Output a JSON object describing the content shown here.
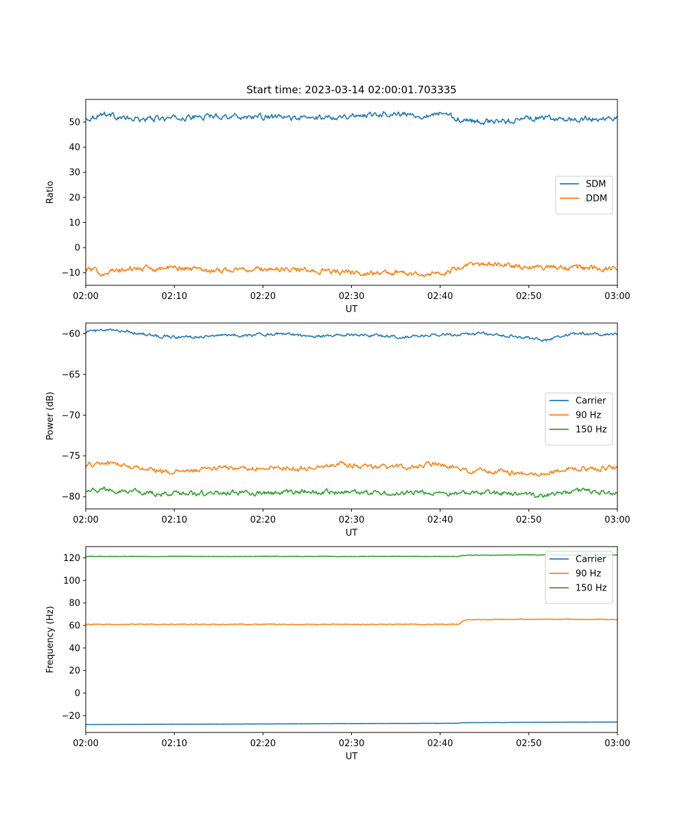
{
  "figure_title": "Start time: 2023-03-14 02:00:01.703335",
  "colors": {
    "blue": "#1f77b4",
    "orange": "#ff7f0e",
    "green": "#2ca02c"
  },
  "chart_data": [
    {
      "type": "line",
      "title": "Start time: 2023-03-14 02:00:01.703335",
      "xlabel": "UT",
      "ylabel": "Ratio",
      "x_range": [
        "02:00",
        "03:00"
      ],
      "ylim": [
        -15,
        59
      ],
      "xticks": [
        "02:00",
        "02:10",
        "02:20",
        "02:30",
        "02:40",
        "02:50",
        "03:00"
      ],
      "yticks": [
        -10,
        0,
        10,
        20,
        30,
        40,
        50
      ],
      "grid": false,
      "legend_position": "center-right",
      "series": [
        {
          "name": "SDM",
          "color": "#1f77b4",
          "x": [
            "02:00",
            "02:02",
            "02:05",
            "02:10",
            "02:15",
            "02:20",
            "02:25",
            "02:30",
            "02:34",
            "02:38",
            "02:40",
            "02:43",
            "02:46",
            "02:50",
            "02:55",
            "03:00"
          ],
          "y": [
            51,
            53.5,
            51,
            51.5,
            52.5,
            52,
            51.5,
            52.5,
            53.5,
            52.5,
            53.5,
            50.5,
            50,
            51.5,
            51,
            51.5
          ],
          "noise": 0.9
        },
        {
          "name": "DDM",
          "color": "#ff7f0e",
          "x": [
            "02:00",
            "02:02",
            "02:05",
            "02:10",
            "02:15",
            "02:20",
            "02:25",
            "02:30",
            "02:35",
            "02:40",
            "02:42",
            "02:44",
            "02:50",
            "02:55",
            "03:00"
          ],
          "y": [
            -8.5,
            -10,
            -8.5,
            -8,
            -9,
            -8.5,
            -9,
            -10,
            -10,
            -10.5,
            -8.5,
            -6.5,
            -7.5,
            -8,
            -8.5
          ],
          "noise": 0.9
        }
      ]
    },
    {
      "type": "line",
      "xlabel": "UT",
      "ylabel": "Power (dB)",
      "x_range": [
        "02:00",
        "03:00"
      ],
      "ylim": [
        -81.5,
        -58.7
      ],
      "xticks": [
        "02:00",
        "02:10",
        "02:20",
        "02:30",
        "02:40",
        "02:50",
        "03:00"
      ],
      "yticks": [
        -80,
        -75,
        -70,
        -65,
        -60
      ],
      "grid": false,
      "legend_position": "center-right",
      "series": [
        {
          "name": "Carrier",
          "color": "#1f77b4",
          "x": [
            "02:00",
            "02:04",
            "02:08",
            "02:12",
            "02:15",
            "02:18",
            "02:22",
            "02:26",
            "02:30",
            "02:35",
            "02:40",
            "02:45",
            "02:48",
            "02:52",
            "02:55",
            "03:00"
          ],
          "y": [
            -59.7,
            -59.6,
            -60.3,
            -60.4,
            -60.2,
            -60.2,
            -60,
            -60.3,
            -60.1,
            -60.4,
            -60.1,
            -60,
            -60.3,
            -60.8,
            -60,
            -60.1
          ],
          "noise": 0.15
        },
        {
          "name": "90 Hz",
          "color": "#ff7f0e",
          "x": [
            "02:00",
            "02:02",
            "02:05",
            "02:10",
            "02:15",
            "02:20",
            "02:25",
            "02:28",
            "02:32",
            "02:36",
            "02:40",
            "02:43",
            "02:47",
            "02:51",
            "02:55",
            "03:00"
          ],
          "y": [
            -76.2,
            -75.8,
            -76.3,
            -77,
            -76.5,
            -76.5,
            -76.5,
            -76,
            -76.3,
            -76.4,
            -76,
            -76.8,
            -76.9,
            -77.3,
            -76.5,
            -76.5
          ],
          "noise": 0.25
        },
        {
          "name": "150 Hz",
          "color": "#2ca02c",
          "x": [
            "02:00",
            "02:04",
            "02:08",
            "02:12",
            "02:16",
            "02:20",
            "02:25",
            "02:30",
            "02:35",
            "02:40",
            "02:45",
            "02:48",
            "02:52",
            "02:55",
            "03:00"
          ],
          "y": [
            -79.1,
            -79.2,
            -79.7,
            -79.6,
            -79.5,
            -79.6,
            -79.4,
            -79.5,
            -79.6,
            -79.6,
            -79.5,
            -79.7,
            -79.9,
            -79.3,
            -79.5
          ],
          "noise": 0.25
        }
      ]
    },
    {
      "type": "line",
      "xlabel": "UT",
      "ylabel": "Frequency (Hz)",
      "x_range": [
        "02:00",
        "03:00"
      ],
      "ylim": [
        -35,
        130
      ],
      "xticks": [
        "02:00",
        "02:10",
        "02:20",
        "02:30",
        "02:40",
        "02:50",
        "03:00"
      ],
      "yticks": [
        -20,
        0,
        20,
        40,
        60,
        80,
        100,
        120
      ],
      "grid": false,
      "legend_position": "top-right",
      "series": [
        {
          "name": "Carrier",
          "color": "#1f77b4",
          "x": [
            "02:00",
            "02:42",
            "02:42.5",
            "03:00"
          ],
          "y": [
            -28,
            -26.8,
            -26.3,
            -25.7
          ],
          "noise": 0.05
        },
        {
          "name": "90 Hz",
          "color": "#ff7f0e",
          "x": [
            "02:00",
            "02:30",
            "02:42",
            "02:42.3",
            "02:42.6",
            "02:43",
            "02:50",
            "03:00"
          ],
          "y": [
            61,
            61,
            61,
            62,
            64.5,
            65,
            65.5,
            65.3
          ],
          "noise": 0.25
        },
        {
          "name": "150 Hz",
          "color": "#2ca02c",
          "x": [
            "02:00",
            "02:42",
            "02:42.6",
            "02:50",
            "03:00"
          ],
          "y": [
            121.3,
            121.3,
            122.3,
            122.7,
            122.6
          ],
          "noise": 0.15
        }
      ]
    }
  ]
}
